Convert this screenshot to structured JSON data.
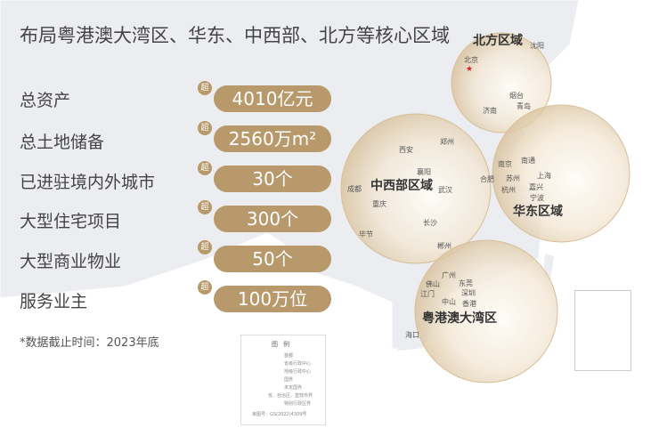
{
  "title": "布局粤港澳大湾区、华东、中西部、北方等核心区域",
  "stats": [
    {
      "label": "总资产",
      "badge": "超",
      "value": "4010亿元"
    },
    {
      "label": "总土地储备",
      "badge": "超",
      "value": "2560万m²"
    },
    {
      "label": "已进驻境内外城市",
      "badge": "超",
      "value": "30个"
    },
    {
      "label": "大型住宅项目",
      "badge": "超",
      "value": "300个"
    },
    {
      "label": "大型商业物业",
      "badge": "超",
      "value": "50个"
    },
    {
      "label": "服务业主",
      "badge": "超",
      "value": "100万位"
    }
  ],
  "footnote": "*数据截止时间：2023年底",
  "regions": {
    "north": "北方区域",
    "central_west": "中西部区域",
    "east": "华东区域",
    "gba": "粤港澳大湾区"
  },
  "cities": {
    "beijing": "北京",
    "shenyang": "沈阳",
    "yantai": "烟台",
    "qingdao": "青岛",
    "jinan": "济南",
    "xian": "西安",
    "zhengzhou": "郑州",
    "xiangyang": "襄阳",
    "chengdu": "成都",
    "wuhan": "武汉",
    "chongqing": "重庆",
    "changsha": "长沙",
    "bijie": "毕节",
    "chenzhou": "郴州",
    "hefei": "合肥",
    "nanjing": "南京",
    "nantong": "南通",
    "suzhou": "苏州",
    "shanghai": "上海",
    "hangzhou": "杭州",
    "jiaxing": "嘉兴",
    "ningbo": "宁波",
    "guangzhou": "广州",
    "foshan": "佛山",
    "dongguan": "东莞",
    "jiangmen": "江门",
    "shenzhen": "深圳",
    "zhongshan": "中山",
    "hongkong": "香港",
    "haikou": "海口"
  },
  "legend": {
    "title": "图例",
    "items": [
      "首都",
      "省级行政中心",
      "地级行政中心",
      "国界",
      "未定国界",
      "省、自治区、直辖市界",
      "特别行政区界"
    ],
    "approval": "审图号：GS(2022)4309号"
  },
  "colors": {
    "accent": "#b8996b",
    "land": "#ecedf0",
    "capital": "#e02020"
  }
}
